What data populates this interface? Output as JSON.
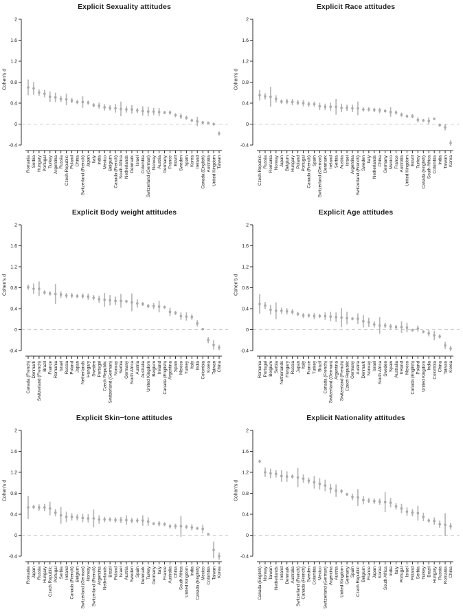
{
  "styles": {
    "background": "#ffffff",
    "point_color": "#a9a9a9",
    "error_color": "#b5b5b5",
    "axis_color": "#2e2e2e",
    "text_color": "#1f1f1f",
    "zero_line_color": "#c9c9c9"
  },
  "chart_data": [
    {
      "type": "scatter",
      "title": "Explicit Sexuality attitudes",
      "ylabel": "Cohen's d",
      "ylim": [
        -0.4,
        2
      ],
      "ytick_values": [
        2,
        1.6,
        1.2,
        0.8,
        0.4,
        0,
        -0.4
      ],
      "ytick_labels": [
        "2",
        "1.6",
        "1.2",
        "0.8",
        "0.4",
        "0",
        "-0.4"
      ],
      "zero_line": 0,
      "grid": false,
      "categories": [
        "Romania",
        "Serbia",
        "Hungary",
        "Portugal",
        "Turkey",
        "Argentina",
        "Russia",
        "Czech Republic",
        "Poland",
        "China",
        "Switzerland (French)",
        "Japan",
        "Italy",
        "India",
        "Mexico",
        "Belgium",
        "Canada (French)",
        "South Africa",
        "Netherlands",
        "Denmark",
        "Israel",
        "Colombia",
        "Switzerland (German)",
        "Norway",
        "Austria",
        "Germany",
        "France",
        "Brazil",
        "Sweden",
        "Spain",
        "Korea",
        "Ireland",
        "Canada (English)",
        "Australia",
        "United Kingdom",
        "Taiwan"
      ],
      "values": [
        0.7,
        0.68,
        0.6,
        0.58,
        0.52,
        0.51,
        0.48,
        0.47,
        0.45,
        0.42,
        0.42,
        0.41,
        0.36,
        0.35,
        0.32,
        0.31,
        0.3,
        0.29,
        0.28,
        0.28,
        0.26,
        0.25,
        0.24,
        0.24,
        0.23,
        0.22,
        0.22,
        0.17,
        0.15,
        0.12,
        0.07,
        0.05,
        0.03,
        0.02,
        0.0,
        -0.18
      ],
      "errors": [
        0.15,
        0.12,
        0.06,
        0.07,
        0.1,
        0.09,
        0.06,
        0.11,
        0.05,
        0.04,
        0.11,
        0.04,
        0.04,
        0.06,
        0.06,
        0.05,
        0.08,
        0.14,
        0.06,
        0.08,
        0.05,
        0.09,
        0.09,
        0.07,
        0.08,
        0.03,
        0.04,
        0.04,
        0.05,
        0.04,
        0.03,
        0.09,
        0.03,
        0.03,
        0.03,
        0.04
      ]
    },
    {
      "type": "scatter",
      "title": "Explicit Race attitudes",
      "ylabel": "Cohen's d",
      "ylim": [
        -0.4,
        2
      ],
      "ytick_values": [
        2,
        1.6,
        1.2,
        0.8,
        0.4,
        0,
        -0.4
      ],
      "ytick_labels": [
        "2",
        "1.6",
        "1.2",
        "0.8",
        "0.4",
        "0",
        "-0.4"
      ],
      "zero_line": 0,
      "grid": false,
      "categories": [
        "Czech Republic",
        "Russia",
        "Romania",
        "Norway",
        "Japan",
        "Belgium",
        "Hungary",
        "Poland",
        "Portugal",
        "Canada (French)",
        "Spain",
        "Switzerland (German)",
        "Denmark",
        "Ireland",
        "Serbia",
        "Austria",
        "Israel",
        "Argentina",
        "Switzerland (French)",
        "Sweden",
        "Italy",
        "Netherlands",
        "China",
        "Germany",
        "Mexico",
        "France",
        "Australia",
        "United Kingdom",
        "Brazil",
        "Turkey",
        "Canada (English)",
        "South Africa",
        "Colombia",
        "India",
        "Taiwan",
        "Korea"
      ],
      "values": [
        0.55,
        0.53,
        0.52,
        0.48,
        0.43,
        0.43,
        0.42,
        0.41,
        0.4,
        0.38,
        0.38,
        0.34,
        0.33,
        0.33,
        0.33,
        0.31,
        0.31,
        0.3,
        0.3,
        0.28,
        0.28,
        0.27,
        0.26,
        0.25,
        0.23,
        0.22,
        0.18,
        0.15,
        0.15,
        0.08,
        0.07,
        0.06,
        0.1,
        -0.02,
        -0.06,
        -0.36
      ],
      "errors": [
        0.1,
        0.06,
        0.19,
        0.07,
        0.04,
        0.05,
        0.06,
        0.05,
        0.06,
        0.05,
        0.05,
        0.07,
        0.06,
        0.08,
        0.15,
        0.08,
        0.06,
        0.07,
        0.13,
        0.04,
        0.04,
        0.04,
        0.05,
        0.03,
        0.09,
        0.04,
        0.04,
        0.03,
        0.04,
        0.05,
        0.03,
        0.07,
        0.02,
        0.03,
        0.06,
        0.05
      ]
    },
    {
      "type": "scatter",
      "title": "Explicit Body weight attitudes",
      "ylabel": "Cohen's d",
      "ylim": [
        -0.4,
        2
      ],
      "ytick_values": [
        2,
        1.6,
        1.2,
        0.8,
        0.4,
        0,
        -0.4
      ],
      "ytick_labels": [
        "2",
        "1.6",
        "1.2",
        "0.8",
        "0.4",
        "0",
        "-0.4"
      ],
      "zero_line": 0,
      "grid": false,
      "categories": [
        "Canada (French)",
        "Denmark",
        "Switzerland (French)",
        "Brazil",
        "France",
        "Romania",
        "Israel",
        "Russia",
        "Poland",
        "Japan",
        "Netherlands",
        "Hungary",
        "Sweden",
        "Portugal",
        "Czech Republic",
        "Switzerland (German)",
        "Norway",
        "Serbia",
        "Germany",
        "South Africa",
        "Austria",
        "Australia",
        "United Kingdom",
        "Belgium",
        "Ireland",
        "Canada (English)",
        "Argentina",
        "Spain",
        "Mexico",
        "Turkey",
        "Italy",
        "India",
        "Colombia",
        "Korea",
        "Taiwan",
        "China"
      ],
      "values": [
        0.81,
        0.78,
        0.78,
        0.71,
        0.69,
        0.68,
        0.67,
        0.65,
        0.65,
        0.64,
        0.64,
        0.63,
        0.61,
        0.58,
        0.57,
        0.56,
        0.55,
        0.55,
        0.54,
        0.52,
        0.5,
        0.49,
        0.45,
        0.45,
        0.44,
        0.43,
        0.34,
        0.32,
        0.26,
        0.25,
        0.24,
        0.12,
        0.01,
        -0.2,
        -0.29,
        -0.34
      ],
      "errors": [
        0.05,
        0.1,
        0.14,
        0.04,
        0.04,
        0.19,
        0.06,
        0.05,
        0.05,
        0.04,
        0.05,
        0.06,
        0.05,
        0.07,
        0.13,
        0.1,
        0.08,
        0.13,
        0.03,
        0.17,
        0.08,
        0.04,
        0.04,
        0.06,
        0.11,
        0.03,
        0.08,
        0.04,
        0.07,
        0.08,
        0.05,
        0.06,
        0.02,
        0.06,
        0.09,
        0.05
      ]
    },
    {
      "type": "scatter",
      "title": "Explicit Age attitudes",
      "ylabel": "Cohen's d",
      "ylim": [
        -0.4,
        2
      ],
      "ytick_values": [
        2,
        1.6,
        1.2,
        0.8,
        0.4,
        0,
        -0.4
      ],
      "ytick_labels": [
        "2",
        "1.6",
        "1.2",
        "0.8",
        "0.4",
        "0",
        "-0.4"
      ],
      "zero_line": 0,
      "grid": false,
      "categories": [
        "Romania",
        "Portugal",
        "Belgium",
        "Serbia",
        "Netherlands",
        "Hungary",
        "Russia",
        "Japan",
        "Italy",
        "France",
        "Turkey",
        "Brazil",
        "Canada (French)",
        "Switzerland (German)",
        "Argentina",
        "Switzerland (French)",
        "Czech Republic",
        "Germany",
        "Austria",
        "Denmark",
        "Norway",
        "Israel",
        "South Africa",
        "Sweden",
        "Spain",
        "Australia",
        "Ireland",
        "Mexico",
        "Canada (English)",
        "Poland",
        "United Kingdom",
        "India",
        "Colombia",
        "China",
        "Taiwan",
        "Korea"
      ],
      "values": [
        0.49,
        0.46,
        0.38,
        0.36,
        0.36,
        0.35,
        0.34,
        0.3,
        0.27,
        0.27,
        0.26,
        0.26,
        0.26,
        0.25,
        0.24,
        0.23,
        0.22,
        0.21,
        0.21,
        0.16,
        0.14,
        0.1,
        0.08,
        0.08,
        0.06,
        0.05,
        0.05,
        0.04,
        -0.01,
        0.02,
        -0.04,
        -0.07,
        -0.11,
        -0.13,
        -0.3,
        -0.36
      ],
      "errors": [
        0.19,
        0.07,
        0.09,
        0.16,
        0.06,
        0.06,
        0.05,
        0.04,
        0.05,
        0.04,
        0.06,
        0.04,
        0.07,
        0.09,
        0.09,
        0.18,
        0.12,
        0.03,
        0.1,
        0.12,
        0.09,
        0.06,
        0.16,
        0.05,
        0.05,
        0.04,
        0.11,
        0.09,
        0.03,
        0.06,
        0.03,
        0.06,
        0.09,
        0.04,
        0.07,
        0.05
      ]
    },
    {
      "type": "scatter",
      "title": "Explicit Skin−tone attitudes",
      "ylabel": "Cohen's d",
      "ylim": [
        -0.4,
        2
      ],
      "ytick_values": [
        2,
        1.6,
        1.2,
        0.8,
        0.4,
        0,
        -0.4
      ],
      "ytick_labels": [
        "2",
        "1.6",
        "1.2",
        "0.8",
        "0.4",
        "0",
        "-0.4"
      ],
      "zero_line": 0,
      "grid": false,
      "categories": [
        "Romania",
        "Japan",
        "Russia",
        "Hungary",
        "Czech Republic",
        "Portugal",
        "Serbia",
        "Ireland",
        "Canada (French)",
        "Belgium",
        "Switzerland (German)",
        "Norway",
        "Switzerland (French)",
        "Argentina",
        "Netherlands",
        "Brazil",
        "Poland",
        "Israel",
        "Austria",
        "Sweden",
        "Spain",
        "Denmark",
        "Turkey",
        "Germany",
        "Italy",
        "France",
        "Australia",
        "China",
        "South Africa",
        "United Kingdom",
        "India",
        "Canada (English)",
        "Mexico",
        "Colombia",
        "Taiwan",
        "Korea"
      ],
      "values": [
        0.53,
        0.54,
        0.53,
        0.53,
        0.51,
        0.43,
        0.38,
        0.35,
        0.35,
        0.34,
        0.33,
        0.32,
        0.32,
        0.3,
        0.3,
        0.3,
        0.29,
        0.29,
        0.29,
        0.28,
        0.28,
        0.28,
        0.26,
        0.22,
        0.22,
        0.21,
        0.17,
        0.17,
        0.17,
        0.16,
        0.15,
        0.13,
        0.12,
        0.02,
        -0.28,
        -0.4
      ],
      "errors": [
        0.22,
        0.04,
        0.06,
        0.07,
        0.13,
        0.07,
        0.16,
        0.1,
        0.07,
        0.06,
        0.08,
        0.08,
        0.17,
        0.08,
        0.05,
        0.04,
        0.05,
        0.06,
        0.09,
        0.05,
        0.05,
        0.1,
        0.08,
        0.03,
        0.05,
        0.04,
        0.04,
        0.05,
        0.2,
        0.04,
        0.06,
        0.03,
        0.08,
        0.02,
        0.16,
        0.07
      ]
    },
    {
      "type": "scatter",
      "title": "Explicit Nationality attitudes",
      "ylabel": "Cohen's d",
      "ylim": [
        -0.4,
        2
      ],
      "ytick_values": [
        2,
        1.6,
        1.2,
        0.8,
        0.4,
        0,
        -0.4
      ],
      "ytick_labels": [
        "2",
        "1.6",
        "1.2",
        "0.8",
        "0.4",
        "0",
        "-0.4"
      ],
      "zero_line": 0,
      "grid": false,
      "categories": [
        "Canada (English)",
        "Norway",
        "Taiwan",
        "Netherlands",
        "Ireland",
        "Denmark",
        "Australia",
        "Switzerland (French)",
        "Canada (French)",
        "Sweden",
        "Colombia",
        "Mexico",
        "Switzerland (German)",
        "Argentina",
        "Austria",
        "United Kingdom",
        "Germany",
        "Spain",
        "Czech Republic",
        "Belgium",
        "France",
        "Japan",
        "Korea",
        "South Africa",
        "India",
        "Italy",
        "Portugal",
        "Israel",
        "Poland",
        "Serbia",
        "Turkey",
        "Brazil",
        "Hungary",
        "Russia",
        "Romania",
        "China"
      ],
      "values": [
        1.41,
        1.2,
        1.18,
        1.17,
        1.13,
        1.12,
        1.12,
        1.1,
        1.08,
        1.04,
        1.01,
        0.98,
        0.95,
        0.89,
        0.85,
        0.84,
        0.78,
        0.73,
        0.72,
        0.67,
        0.66,
        0.65,
        0.64,
        0.63,
        0.62,
        0.55,
        0.51,
        0.45,
        0.43,
        0.42,
        0.35,
        0.28,
        0.27,
        0.21,
        0.2,
        0.17
      ],
      "errors": [
        0.03,
        0.09,
        0.09,
        0.07,
        0.11,
        0.1,
        0.04,
        0.18,
        0.08,
        0.06,
        0.12,
        0.11,
        0.11,
        0.09,
        0.12,
        0.04,
        0.03,
        0.06,
        0.16,
        0.08,
        0.05,
        0.05,
        0.06,
        0.19,
        0.09,
        0.06,
        0.09,
        0.08,
        0.07,
        0.14,
        0.08,
        0.04,
        0.07,
        0.07,
        0.22,
        0.06
      ]
    }
  ]
}
